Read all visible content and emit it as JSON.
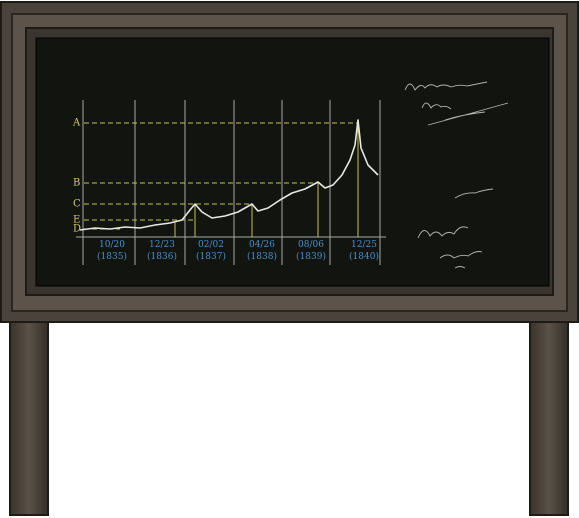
{
  "chalkboard": {
    "levels": [
      "A",
      "B",
      "C",
      "E",
      "D"
    ],
    "dates": [
      {
        "date": "10/20",
        "year": "(1835)"
      },
      {
        "date": "12/23",
        "year": "(1836)"
      },
      {
        "date": "02/02",
        "year": "(1837)"
      },
      {
        "date": "04/26",
        "year": "(1838)"
      },
      {
        "date": "08/06",
        "year": "(1839)"
      },
      {
        "date": "12/25",
        "year": "(1840)"
      }
    ]
  }
}
